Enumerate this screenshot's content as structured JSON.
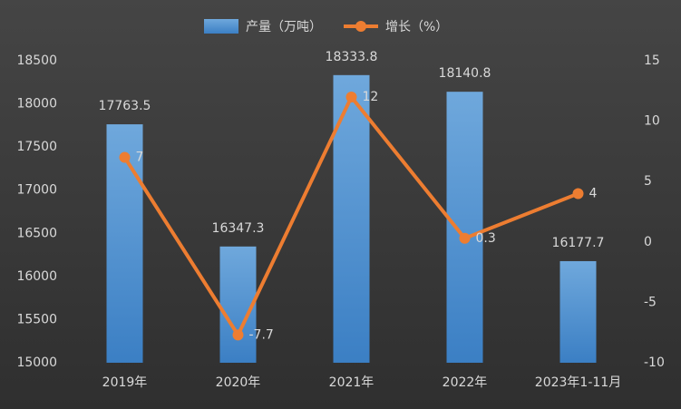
{
  "chart_data": {
    "type": "combo",
    "categories": [
      "2019年",
      "2020年",
      "2021年",
      "2022年",
      "2023年1-11月"
    ],
    "series": [
      {
        "name": "产量（万吨）",
        "type": "bar",
        "color": "#5b9bd5",
        "values": [
          17763.5,
          16347.3,
          18333.8,
          18140.8,
          16177.7
        ]
      },
      {
        "name": "增长（%）",
        "type": "line",
        "axis": "y2",
        "color": "#ed7d31",
        "values": [
          7,
          -7.7,
          12,
          0.3,
          4
        ]
      }
    ],
    "ylim": [
      15000,
      18500
    ],
    "yticks": [
      15000,
      15500,
      16000,
      16500,
      17000,
      17500,
      18000,
      18500
    ],
    "y2lim": [
      -10,
      15
    ],
    "y2ticks": [
      -10,
      -5,
      0,
      5,
      10,
      15
    ],
    "grid": false
  }
}
